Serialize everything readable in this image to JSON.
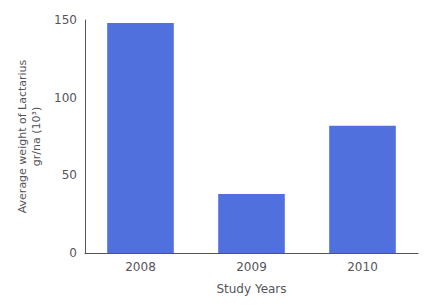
{
  "chart_data": {
    "type": "bar",
    "categories": [
      "2008",
      "2009",
      "2010"
    ],
    "values": [
      148,
      38,
      82
    ],
    "xlabel": "Study Years",
    "ylabel": "Average weight of Lactarius\ngr/na (10³)",
    "ylim": [
      0,
      150
    ],
    "yticks": [
      0,
      50,
      100,
      150
    ],
    "grid": false
  }
}
